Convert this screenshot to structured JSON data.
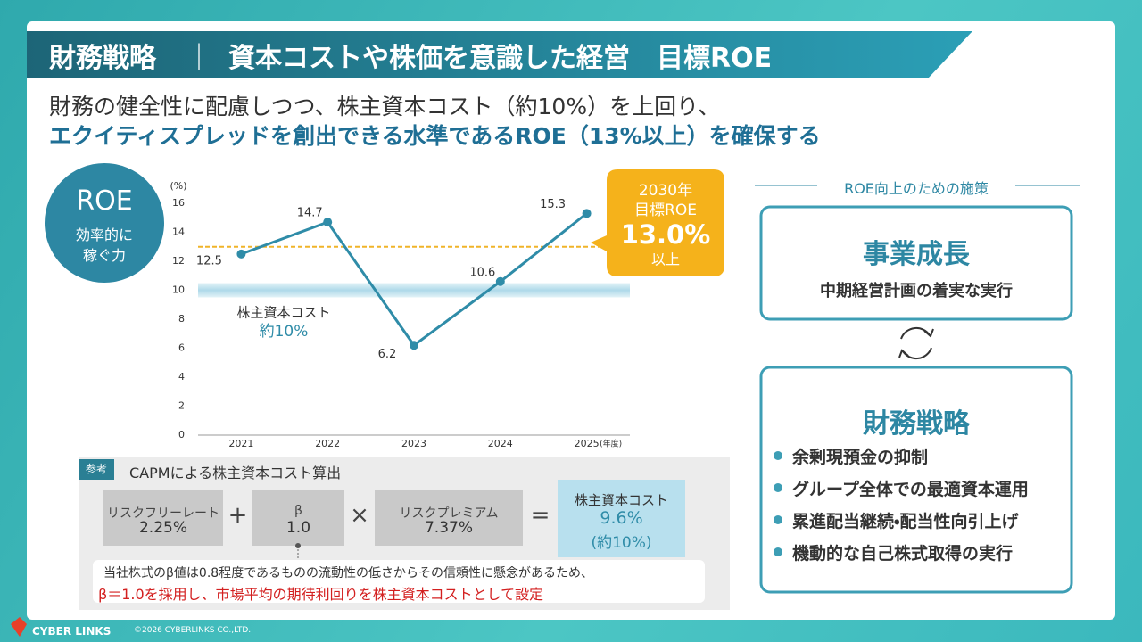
{
  "header": {
    "title_left": "財務戦略",
    "separator": "｜",
    "title_right": "資本コストや株価を意識した経営　目標ROE"
  },
  "lead": {
    "line1": "財務の健全性に配慮しつつ、株主資本コスト（約10%）を上回り、",
    "line2": "エクイティスプレッドを創出できる水準であるROE（13%以上）を確保する"
  },
  "roe_badge": {
    "title": "ROE",
    "line1": "効率的に",
    "line2": "稼ぐ力"
  },
  "chart_data": {
    "type": "line",
    "y_unit": "(%)",
    "x_unit": "(年度)",
    "categories": [
      "2021",
      "2022",
      "2023",
      "2024",
      "2025"
    ],
    "values": [
      12.5,
      14.7,
      6.2,
      10.6,
      15.3
    ],
    "color": "#2f8ca8",
    "ylim": [
      0,
      16
    ],
    "yticks": [
      0,
      2,
      4,
      6,
      8,
      10,
      12,
      14,
      16
    ],
    "grid": false,
    "target_line": {
      "value": 13,
      "color": "#f0b429"
    },
    "cost_band": {
      "value": 10,
      "label": "株主資本コスト",
      "value_label": "約10%",
      "color": "#bfe3ef"
    },
    "callout": {
      "year": "2030年",
      "label": "目標ROE",
      "target": "13.0%",
      "suffix": "以上",
      "color": "#f5b21b"
    }
  },
  "capm": {
    "tag": "参考",
    "title": "CAPMによる株主資本コスト算出",
    "terms": [
      {
        "label": "リスクフリーレート",
        "value": "2.25%"
      },
      {
        "label": "β",
        "value": "1.0"
      },
      {
        "label": "リスクプレミアム",
        "value": "7.37%"
      }
    ],
    "operators": [
      "+",
      "×",
      "="
    ],
    "result": {
      "label": "株主資本コスト",
      "value": "9.6%",
      "note": "(約10%)"
    },
    "note": {
      "line1": "当社株式のβ値は0.8程度であるものの流動性の低さからその信頼性に懸念があるため、",
      "line2": "β＝1.0を採用し、市場平均の期待利回りを株主資本コストとして設定"
    }
  },
  "measures": {
    "heading": "ROE向上のための施策",
    "growth": {
      "title": "事業成長",
      "text": "中期経営計画の着実な実行"
    },
    "finance": {
      "title": "財務戦略",
      "items": [
        "余剰現預金の抑制",
        "グループ全体での最適資本運用",
        "累進配当継続・配当性向引上げ",
        "機動的な自己株式取得の実行"
      ]
    }
  },
  "footer": {
    "logo": "CYBER LINKS",
    "copyright": "©2026 CYBERLINKS CO.,LTD."
  }
}
